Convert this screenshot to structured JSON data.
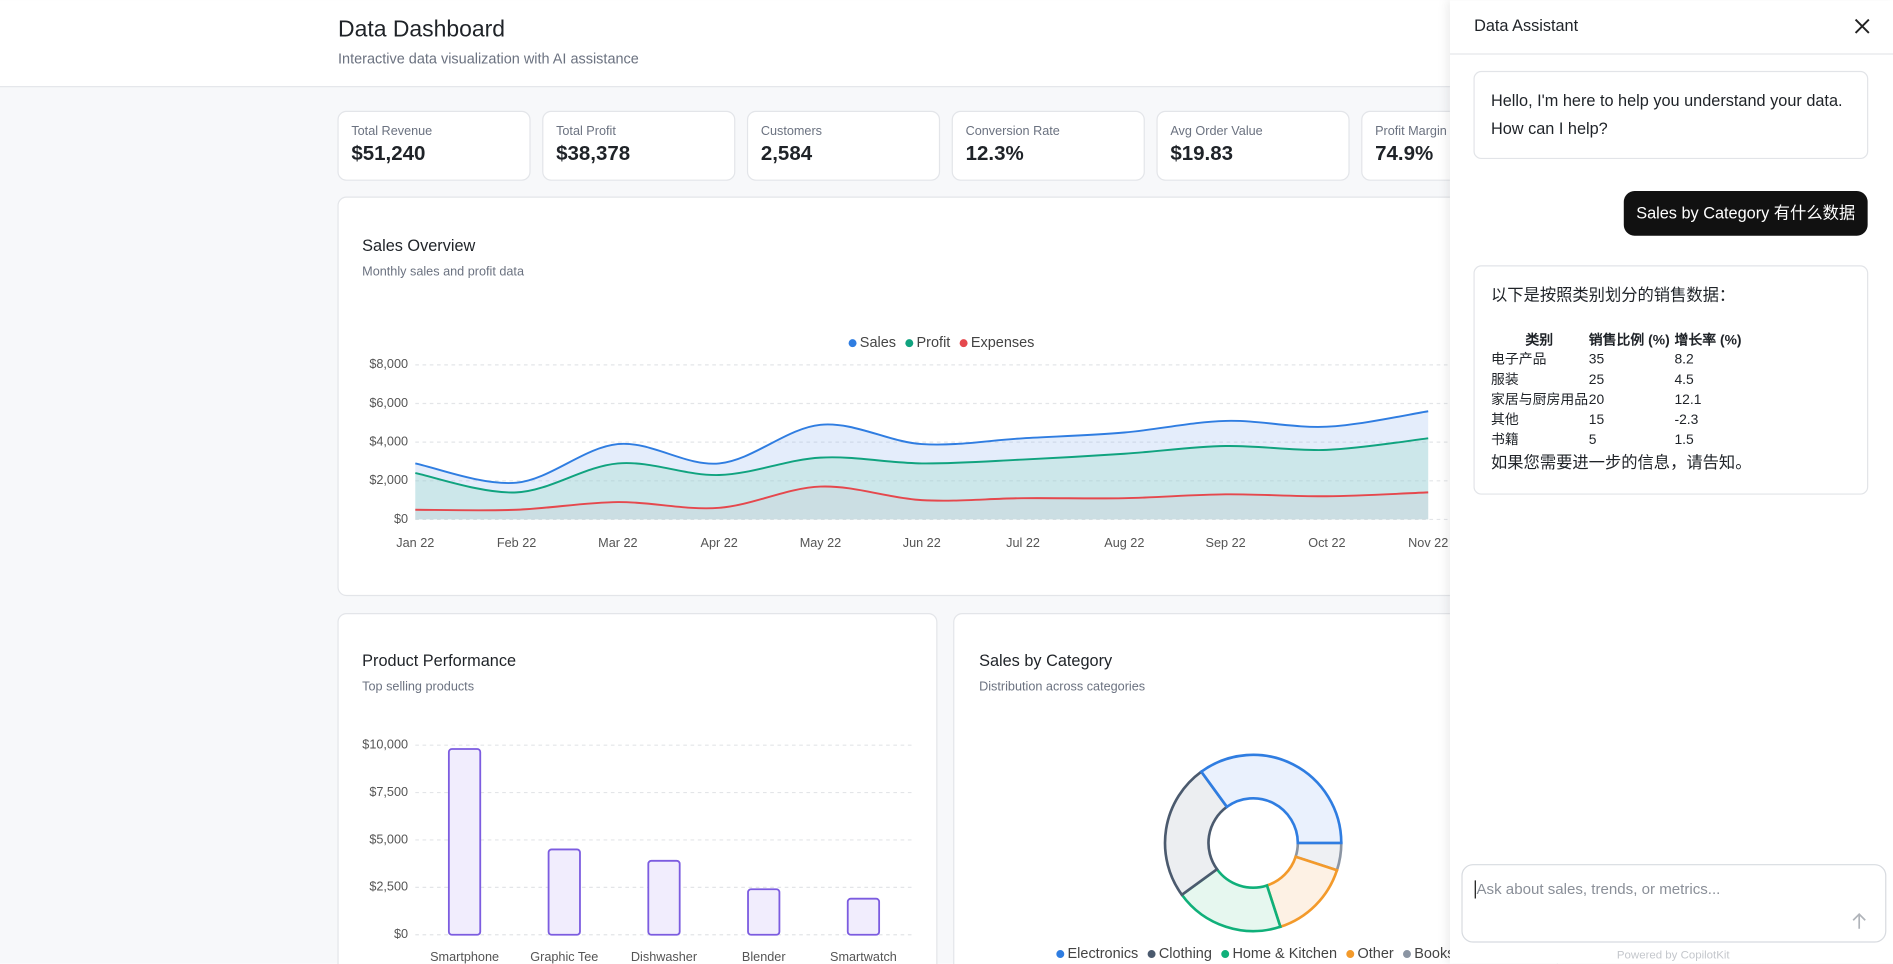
{
  "header": {
    "title": "Data Dashboard",
    "subtitle": "Interactive data visualization with AI assistance"
  },
  "kpis": [
    {
      "label": "Total Revenue",
      "value": "$51,240"
    },
    {
      "label": "Total Profit",
      "value": "$38,378"
    },
    {
      "label": "Customers",
      "value": "2,584"
    },
    {
      "label": "Conversion Rate",
      "value": "12.3%"
    },
    {
      "label": "Avg Order Value",
      "value": "$19.83"
    },
    {
      "label": "Profit Margin",
      "value": "74.9%"
    }
  ],
  "chart_data": [
    {
      "type": "line",
      "title": "Sales Overview",
      "subtitle": "Monthly sales and profit data",
      "categories": [
        "Jan 22",
        "Feb 22",
        "Mar 22",
        "Apr 22",
        "May 22",
        "Jun 22",
        "Jul 22",
        "Aug 22",
        "Sep 22",
        "Oct 22",
        "Nov 22"
      ],
      "series": [
        {
          "name": "Sales",
          "color": "#2f7de1",
          "values": [
            2900,
            1900,
            3900,
            2900,
            4900,
            3900,
            4200,
            4500,
            5100,
            4800,
            5600
          ]
        },
        {
          "name": "Profit",
          "color": "#10a37f",
          "values": [
            2400,
            1400,
            2900,
            2300,
            3200,
            2900,
            3100,
            3400,
            3800,
            3600,
            4200
          ]
        },
        {
          "name": "Expenses",
          "color": "#e5484d",
          "values": [
            500,
            500,
            900,
            600,
            1700,
            1000,
            1100,
            1100,
            1300,
            1200,
            1400
          ]
        }
      ],
      "ylim": [
        0,
        8000
      ],
      "yticks": [
        {
          "value": 0,
          "label": "$0"
        },
        {
          "value": 2000,
          "label": "$2,000"
        },
        {
          "value": 4000,
          "label": "$4,000"
        },
        {
          "value": 6000,
          "label": "$6,000"
        },
        {
          "value": 8000,
          "label": "$8,000"
        }
      ],
      "grid": true,
      "legend": "top"
    },
    {
      "type": "bar",
      "title": "Product Performance",
      "subtitle": "Top selling products",
      "categories": [
        "Smartphone",
        "Graphic Tee",
        "Dishwasher",
        "Blender",
        "Smartwatch"
      ],
      "values": [
        9800,
        4500,
        3900,
        2400,
        1900
      ],
      "color": "#7c5ce0",
      "ylim": [
        0,
        10000
      ],
      "yticks": [
        {
          "value": 0,
          "label": "$0"
        },
        {
          "value": 2500,
          "label": "$2,500"
        },
        {
          "value": 5000,
          "label": "$5,000"
        },
        {
          "value": 7500,
          "label": "$7,500"
        },
        {
          "value": 10000,
          "label": "$10,000"
        }
      ],
      "grid": true
    },
    {
      "type": "pie",
      "title": "Sales by Category",
      "subtitle": "Distribution across categories",
      "categories": [
        "Electronics",
        "Clothing",
        "Home & Kitchen",
        "Other",
        "Books"
      ],
      "values": [
        35,
        25,
        20,
        15,
        5
      ],
      "colors": [
        "#2f7de1",
        "#4b5a6e",
        "#10b07a",
        "#f39a2b",
        "#8b95a3"
      ],
      "legend": "bottom"
    }
  ],
  "assistant": {
    "title": "Data Assistant",
    "messages": [
      {
        "role": "assistant",
        "lines": [
          "Hello, I'm here to help you understand your data.",
          "How can I help?"
        ]
      },
      {
        "role": "user",
        "text": "Sales by Category  有什么数据"
      },
      {
        "role": "assistant",
        "intro": "以下是按照类别划分的销售数据：",
        "table": {
          "header": [
            "类别",
            "销售比例 (%)",
            "增长率 (%)"
          ],
          "rows": [
            [
              "电子产品",
              35,
              8.2
            ],
            [
              "服装",
              25,
              4.5
            ],
            [
              "家居与厨房用品",
              20,
              12.1
            ],
            [
              "其他",
              15,
              -2.3
            ],
            [
              "书籍",
              5,
              1.5
            ]
          ]
        },
        "outro": "如果您需要进一步的信息，请告知。"
      }
    ],
    "placeholder": "Ask about sales, trends, or metrics...",
    "footer": "Powered by CopilotKit"
  }
}
